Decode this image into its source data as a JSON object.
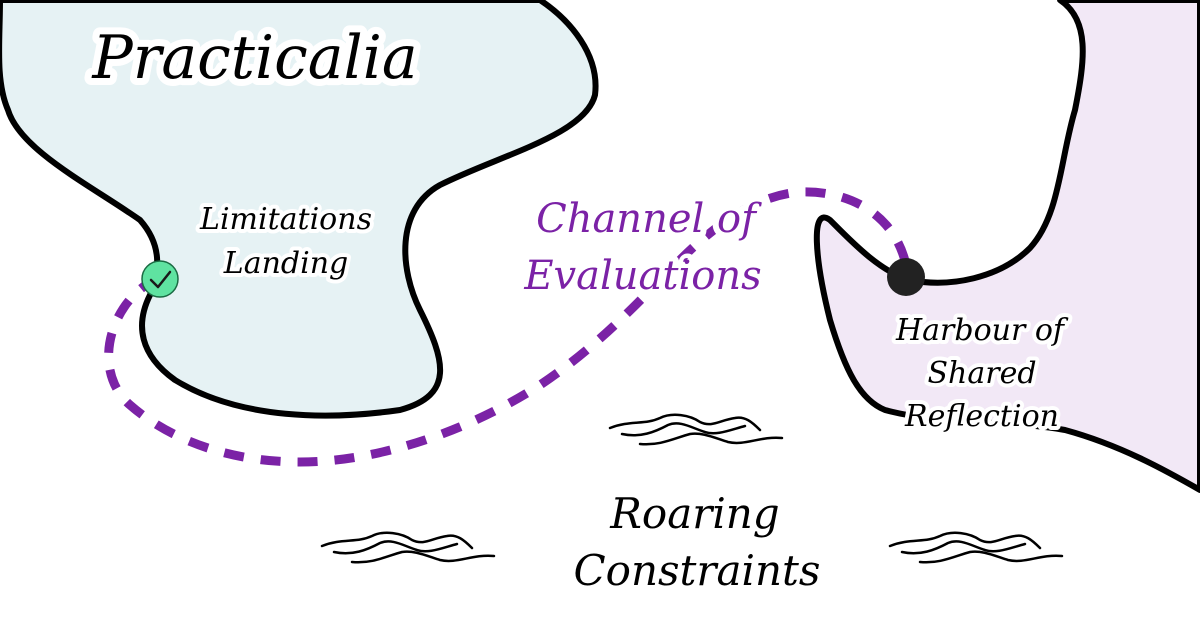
{
  "map": {
    "regions": {
      "west": {
        "name": "Practicalia",
        "fill": "#e6f2f4"
      },
      "east": {
        "fill": "#f2e8f6"
      }
    },
    "route": {
      "name_line1": "Channel of",
      "name_line2": "Evaluations",
      "color": "#7b22a6",
      "style": "dashed"
    },
    "places": {
      "start": {
        "name_line1": "Limitations",
        "name_line2": "Landing",
        "marker": "check-circle-icon",
        "marker_color": "#5fe3a1"
      },
      "end": {
        "name_line1": "Harbour of",
        "name_line2": "Shared",
        "name_line3": "Reflection",
        "marker": "dot-icon",
        "marker_color": "#222222"
      }
    },
    "sea": {
      "name_line1": "Roaring",
      "name_line2": "Constraints",
      "wave_icon": "wave-icon"
    }
  }
}
